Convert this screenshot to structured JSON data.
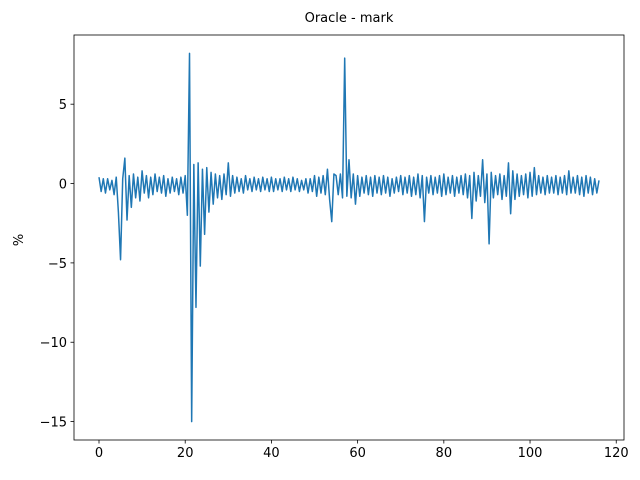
{
  "chart_data": {
    "type": "line",
    "title": "Oracle - mark",
    "ylabel": "%",
    "color": "#1f77b4",
    "xlim": [
      -5.8,
      121.8
    ],
    "ylim": [
      -16.16,
      9.36
    ],
    "xticks": [
      0,
      20,
      40,
      60,
      80,
      100,
      120
    ],
    "yticks": [
      {
        "value": -15,
        "label": "−15"
      },
      {
        "value": -10,
        "label": "−10"
      },
      {
        "value": -5,
        "label": "−5"
      },
      0,
      5
    ],
    "x": [
      0,
      0.5,
      1,
      1.5,
      2,
      2.5,
      3,
      3.5,
      4,
      4.5,
      5,
      5.5,
      6,
      6.5,
      7,
      7.5,
      8,
      8.5,
      9,
      9.5,
      10,
      10.5,
      11,
      11.5,
      12,
      12.5,
      13,
      13.5,
      14,
      14.5,
      15,
      15.5,
      16,
      16.5,
      17,
      17.5,
      18,
      18.5,
      19,
      19.5,
      20,
      20.5,
      21,
      21.5,
      22,
      22.5,
      23,
      23.5,
      24,
      24.5,
      25,
      25.5,
      26,
      26.5,
      27,
      27.5,
      28,
      28.5,
      29,
      29.5,
      30,
      30.5,
      31,
      31.5,
      32,
      32.5,
      33,
      33.5,
      34,
      34.5,
      35,
      35.5,
      36,
      36.5,
      37,
      37.5,
      38,
      38.5,
      39,
      39.5,
      40,
      40.5,
      41,
      41.5,
      42,
      42.5,
      43,
      43.5,
      44,
      44.5,
      45,
      45.5,
      46,
      46.5,
      47,
      47.5,
      48,
      48.5,
      49,
      49.5,
      50,
      50.5,
      51,
      51.5,
      52,
      52.5,
      53,
      53.5,
      54,
      54.5,
      55,
      55.5,
      56,
      56.5,
      57,
      57.5,
      58,
      58.5,
      59,
      59.5,
      60,
      60.5,
      61,
      61.5,
      62,
      62.5,
      63,
      63.5,
      64,
      64.5,
      65,
      65.5,
      66,
      66.5,
      67,
      67.5,
      68,
      68.5,
      69,
      69.5,
      70,
      70.5,
      71,
      71.5,
      72,
      72.5,
      73,
      73.5,
      74,
      74.5,
      75,
      75.5,
      76,
      76.5,
      77,
      77.5,
      78,
      78.5,
      79,
      79.5,
      80,
      80.5,
      81,
      81.5,
      82,
      82.5,
      83,
      83.5,
      84,
      84.5,
      85,
      85.5,
      86,
      86.5,
      87,
      87.5,
      88,
      88.5,
      89,
      89.5,
      90,
      90.5,
      91,
      91.5,
      92,
      92.5,
      93,
      93.5,
      94,
      94.5,
      95,
      95.5,
      96,
      96.5,
      97,
      97.5,
      98,
      98.5,
      99,
      99.5,
      100,
      100.5,
      101,
      101.5,
      102,
      102.5,
      103,
      103.5,
      104,
      104.5,
      105,
      105.5,
      106,
      106.5,
      107,
      107.5,
      108,
      108.5,
      109,
      109.5,
      110,
      110.5,
      111,
      111.5,
      112,
      112.5,
      113,
      113.5,
      114,
      114.5,
      115,
      115.5,
      116
    ],
    "values": [
      0.4,
      -0.5,
      0.3,
      -0.6,
      0.3,
      -0.4,
      0.2,
      -0.7,
      0.4,
      -1.8,
      -4.8,
      0.3,
      1.6,
      -2.3,
      0.5,
      -1.5,
      0.6,
      -0.9,
      0.4,
      -1.1,
      0.8,
      -0.6,
      0.5,
      -0.9,
      0.4,
      -0.7,
      0.6,
      -0.5,
      0.4,
      -0.6,
      0.5,
      -0.8,
      0.3,
      -0.6,
      0.4,
      -0.5,
      0.3,
      -0.7,
      0.4,
      -0.6,
      0.5,
      -2.0,
      8.2,
      -15,
      1.2,
      -7.8,
      1.3,
      -5.2,
      0.9,
      -3.2,
      1.0,
      -1.8,
      0.7,
      -1.3,
      0.6,
      -0.9,
      0.5,
      -1.0,
      0.6,
      -0.7,
      1.3,
      -0.8,
      0.5,
      -0.6,
      0.4,
      -0.5,
      0.3,
      -0.6,
      0.5,
      -0.4,
      0.3,
      -0.5,
      0.4,
      -0.4,
      0.3,
      -0.5,
      0.4,
      -0.4,
      0.3,
      -0.5,
      0.4,
      -0.5,
      0.3,
      -0.4,
      0.3,
      -0.5,
      0.4,
      -0.4,
      0.3,
      -0.5,
      0.4,
      -0.4,
      0.3,
      -0.5,
      0.2,
      -0.4,
      0.3,
      -0.6,
      0.3,
      -0.5,
      0.5,
      -0.8,
      0.4,
      -0.6,
      0.5,
      -0.7,
      0.9,
      -1.0,
      -2.4,
      0.6,
      0.5,
      -0.7,
      0.6,
      -0.9,
      7.9,
      -0.8,
      1.5,
      -0.9,
      0.6,
      -1.3,
      0.5,
      -0.8,
      0.4,
      -0.6,
      0.5,
      -0.7,
      0.4,
      -0.8,
      0.5,
      -0.6,
      0.4,
      -0.7,
      0.5,
      -0.6,
      0.4,
      -0.8,
      0.3,
      -0.6,
      0.4,
      -0.5,
      0.5,
      -0.7,
      0.4,
      -0.6,
      0.5,
      -0.8,
      0.4,
      -0.7,
      0.6,
      -0.9,
      0.5,
      -2.4,
      0.4,
      -0.6,
      0.5,
      -0.7,
      0.4,
      -0.6,
      0.5,
      -0.8,
      0.6,
      -0.7,
      0.4,
      -0.6,
      0.5,
      -0.8,
      0.4,
      -0.6,
      0.5,
      -0.7,
      0.6,
      -0.9,
      0.5,
      -2.2,
      0.7,
      -1.1,
      0.5,
      -0.8,
      1.5,
      -1.2,
      0.6,
      -3.8,
      0.7,
      -0.9,
      0.5,
      -0.7,
      0.6,
      -1.0,
      0.5,
      -0.8,
      1.3,
      -1.9,
      0.8,
      -1.0,
      0.6,
      -0.8,
      0.5,
      -0.7,
      0.6,
      -0.9,
      0.7,
      -0.8,
      1.0,
      -0.7,
      0.5,
      -0.6,
      0.4,
      -0.7,
      0.5,
      -0.6,
      0.4,
      -0.6,
      0.5,
      -0.7,
      0.4,
      -0.6,
      0.5,
      -0.7,
      0.8,
      -0.6,
      0.4,
      -0.6,
      0.5,
      -0.7,
      0.4,
      -0.8,
      0.5,
      -0.6,
      0.4,
      -0.7,
      0.3,
      -0.6,
      0.2
    ]
  }
}
